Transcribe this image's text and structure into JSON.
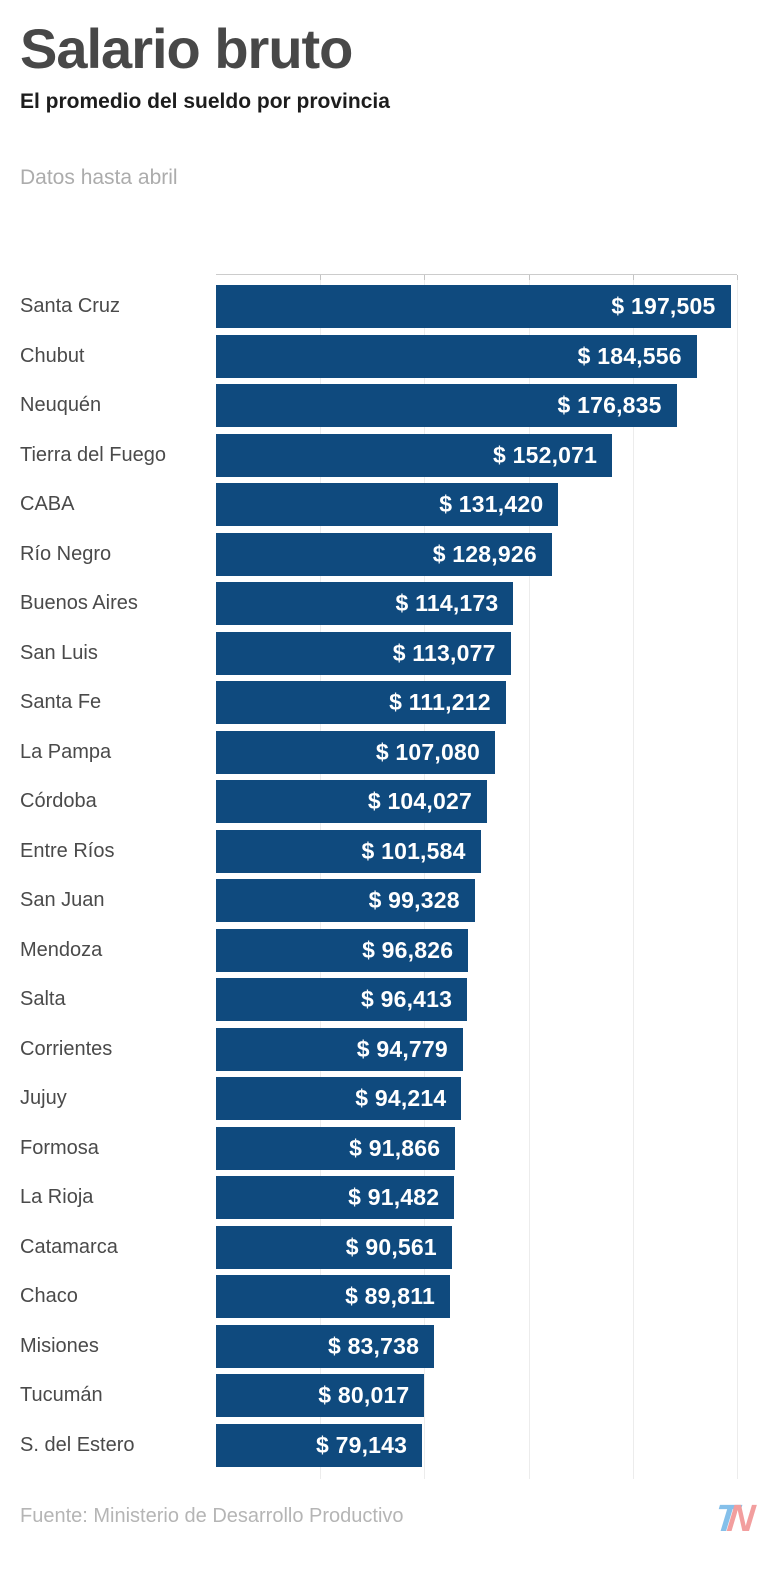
{
  "header": {
    "title": "Salario bruto",
    "subtitle": "El promedio del sueldo por provincia",
    "note": "Datos hasta abril"
  },
  "chart_data": {
    "type": "bar",
    "orientation": "horizontal",
    "title": "Salario bruto",
    "subtitle": "El promedio del sueldo por provincia",
    "xlabel": "",
    "ylabel": "",
    "xlim": [
      0,
      200000
    ],
    "gridline_step": 40000,
    "grid": true,
    "legend": false,
    "currency_prefix": "$",
    "categories": [
      "Santa Cruz",
      "Chubut",
      "Neuquén",
      "Tierra del Fuego",
      "CABA",
      "Río Negro",
      "Buenos Aires",
      "San Luis",
      "Santa Fe",
      "La Pampa",
      "Córdoba",
      "Entre Ríos",
      "San Juan",
      "Mendoza",
      "Salta",
      "Corrientes",
      "Jujuy",
      "Formosa",
      "La Rioja",
      "Catamarca",
      "Chaco",
      "Misiones",
      "Tucumán",
      "S. del Estero"
    ],
    "values": [
      197505,
      184556,
      176835,
      152071,
      131420,
      128926,
      114173,
      113077,
      111212,
      107080,
      104027,
      101584,
      99328,
      96826,
      96413,
      94779,
      94214,
      91866,
      91482,
      90561,
      89811,
      83738,
      80017,
      79143
    ],
    "labels": [
      "$ 197,505",
      "$ 184,556",
      "$ 176,835",
      "$ 152,071",
      "$ 131,420",
      "$ 128,926",
      "$ 114,173",
      "$ 113,077",
      "$ 111,212",
      "$ 107,080",
      "$ 104,027",
      "$ 101,584",
      "$ 99,328",
      "$ 96,826",
      "$ 96,413",
      "$ 94,779",
      "$ 94,214",
      "$ 91,866",
      "$ 91,482",
      "$ 90,561",
      "$ 89,811",
      "$ 83,738",
      "$ 80,017",
      "$ 79,143"
    ]
  },
  "styles": {
    "bar_color": "#0f4a7e",
    "value_text_color": "#ffffff",
    "grid_color": "#ececec",
    "title_color": "#484848",
    "note_color": "#acacac"
  },
  "footer": {
    "source": "Fuente: Ministerio de Desarrollo Productivo",
    "logo": {
      "t": "T",
      "n": "N",
      "t_color": "#85c0ea",
      "n_color": "#f29e9e"
    }
  }
}
